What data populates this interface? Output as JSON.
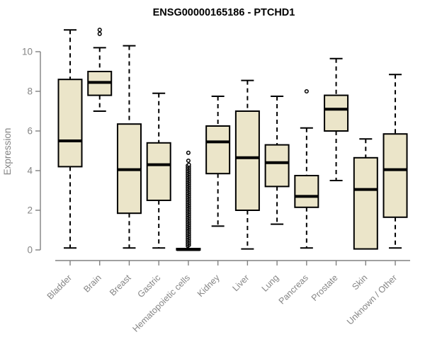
{
  "title": "ENSG00000165186 - PTCHD1",
  "colors": {
    "background": "#ffffff",
    "box_fill": "#ebe5c9",
    "box_border": "#000000",
    "median_line": "#000000",
    "whisker": "#000000",
    "outlier": "#000000",
    "axis": "#808080",
    "tick_text": "#858585",
    "title_text": "#000000"
  },
  "chart_data": {
    "type": "boxplot",
    "title": "ENSG00000165186 - PTCHD1",
    "xlabel": "",
    "ylabel": "Expression",
    "ylim": [
      0,
      10
    ],
    "yticks": [
      0,
      2,
      4,
      6,
      8,
      10
    ],
    "grid": false,
    "legend": "none",
    "x_label_rotation_deg": 45,
    "categories": [
      "Bladder",
      "Brain",
      "Breast",
      "Gastric",
      "Hematopoietic cells",
      "Kidney",
      "Liver",
      "Lung",
      "Pancreas",
      "Prostate",
      "Skin",
      "Unknown / Other"
    ],
    "series": [
      {
        "label": "Bladder",
        "whisker_low": 0.1,
        "q1": 4.2,
        "median": 5.5,
        "q3": 8.6,
        "whisker_high": 11.1,
        "outliers": []
      },
      {
        "label": "Brain",
        "whisker_low": 7.0,
        "q1": 7.8,
        "median": 8.45,
        "q3": 9.0,
        "whisker_high": 10.2,
        "outliers": [
          10.9,
          11.1
        ]
      },
      {
        "label": "Breast",
        "whisker_low": 0.1,
        "q1": 1.85,
        "median": 4.05,
        "q3": 6.35,
        "whisker_high": 10.3,
        "outliers": []
      },
      {
        "label": "Gastric",
        "whisker_low": 0.1,
        "q1": 2.5,
        "median": 4.3,
        "q3": 5.4,
        "whisker_high": 7.9,
        "outliers": []
      },
      {
        "label": "Hematopoietic cells",
        "whisker_low": 0.0,
        "q1": 0.0,
        "median": 0.02,
        "q3": 0.07,
        "whisker_high": 0.1,
        "outliers": [
          4.5,
          4.9
        ],
        "dense_outliers": {
          "min": 0.2,
          "max": 4.3,
          "count": 90
        }
      },
      {
        "label": "Kidney",
        "whisker_low": 1.2,
        "q1": 3.85,
        "median": 5.45,
        "q3": 6.25,
        "whisker_high": 7.75,
        "outliers": []
      },
      {
        "label": "Liver",
        "whisker_low": 0.05,
        "q1": 2.0,
        "median": 4.65,
        "q3": 7.0,
        "whisker_high": 8.55,
        "outliers": []
      },
      {
        "label": "Lung",
        "whisker_low": 1.3,
        "q1": 3.2,
        "median": 4.4,
        "q3": 5.3,
        "whisker_high": 7.75,
        "outliers": []
      },
      {
        "label": "Pancreas",
        "whisker_low": 0.1,
        "q1": 2.15,
        "median": 2.7,
        "q3": 3.75,
        "whisker_high": 6.15,
        "outliers": [
          8.0
        ]
      },
      {
        "label": "Prostate",
        "whisker_low": 3.5,
        "q1": 6.0,
        "median": 7.1,
        "q3": 7.8,
        "whisker_high": 9.65,
        "outliers": []
      },
      {
        "label": "Skin",
        "whisker_low": 0.05,
        "q1": 0.05,
        "median": 3.05,
        "q3": 4.65,
        "whisker_high": 5.6,
        "outliers": []
      },
      {
        "label": "Unknown / Other",
        "whisker_low": 0.1,
        "q1": 1.65,
        "median": 4.05,
        "q3": 5.85,
        "whisker_high": 8.85,
        "outliers": []
      }
    ]
  }
}
